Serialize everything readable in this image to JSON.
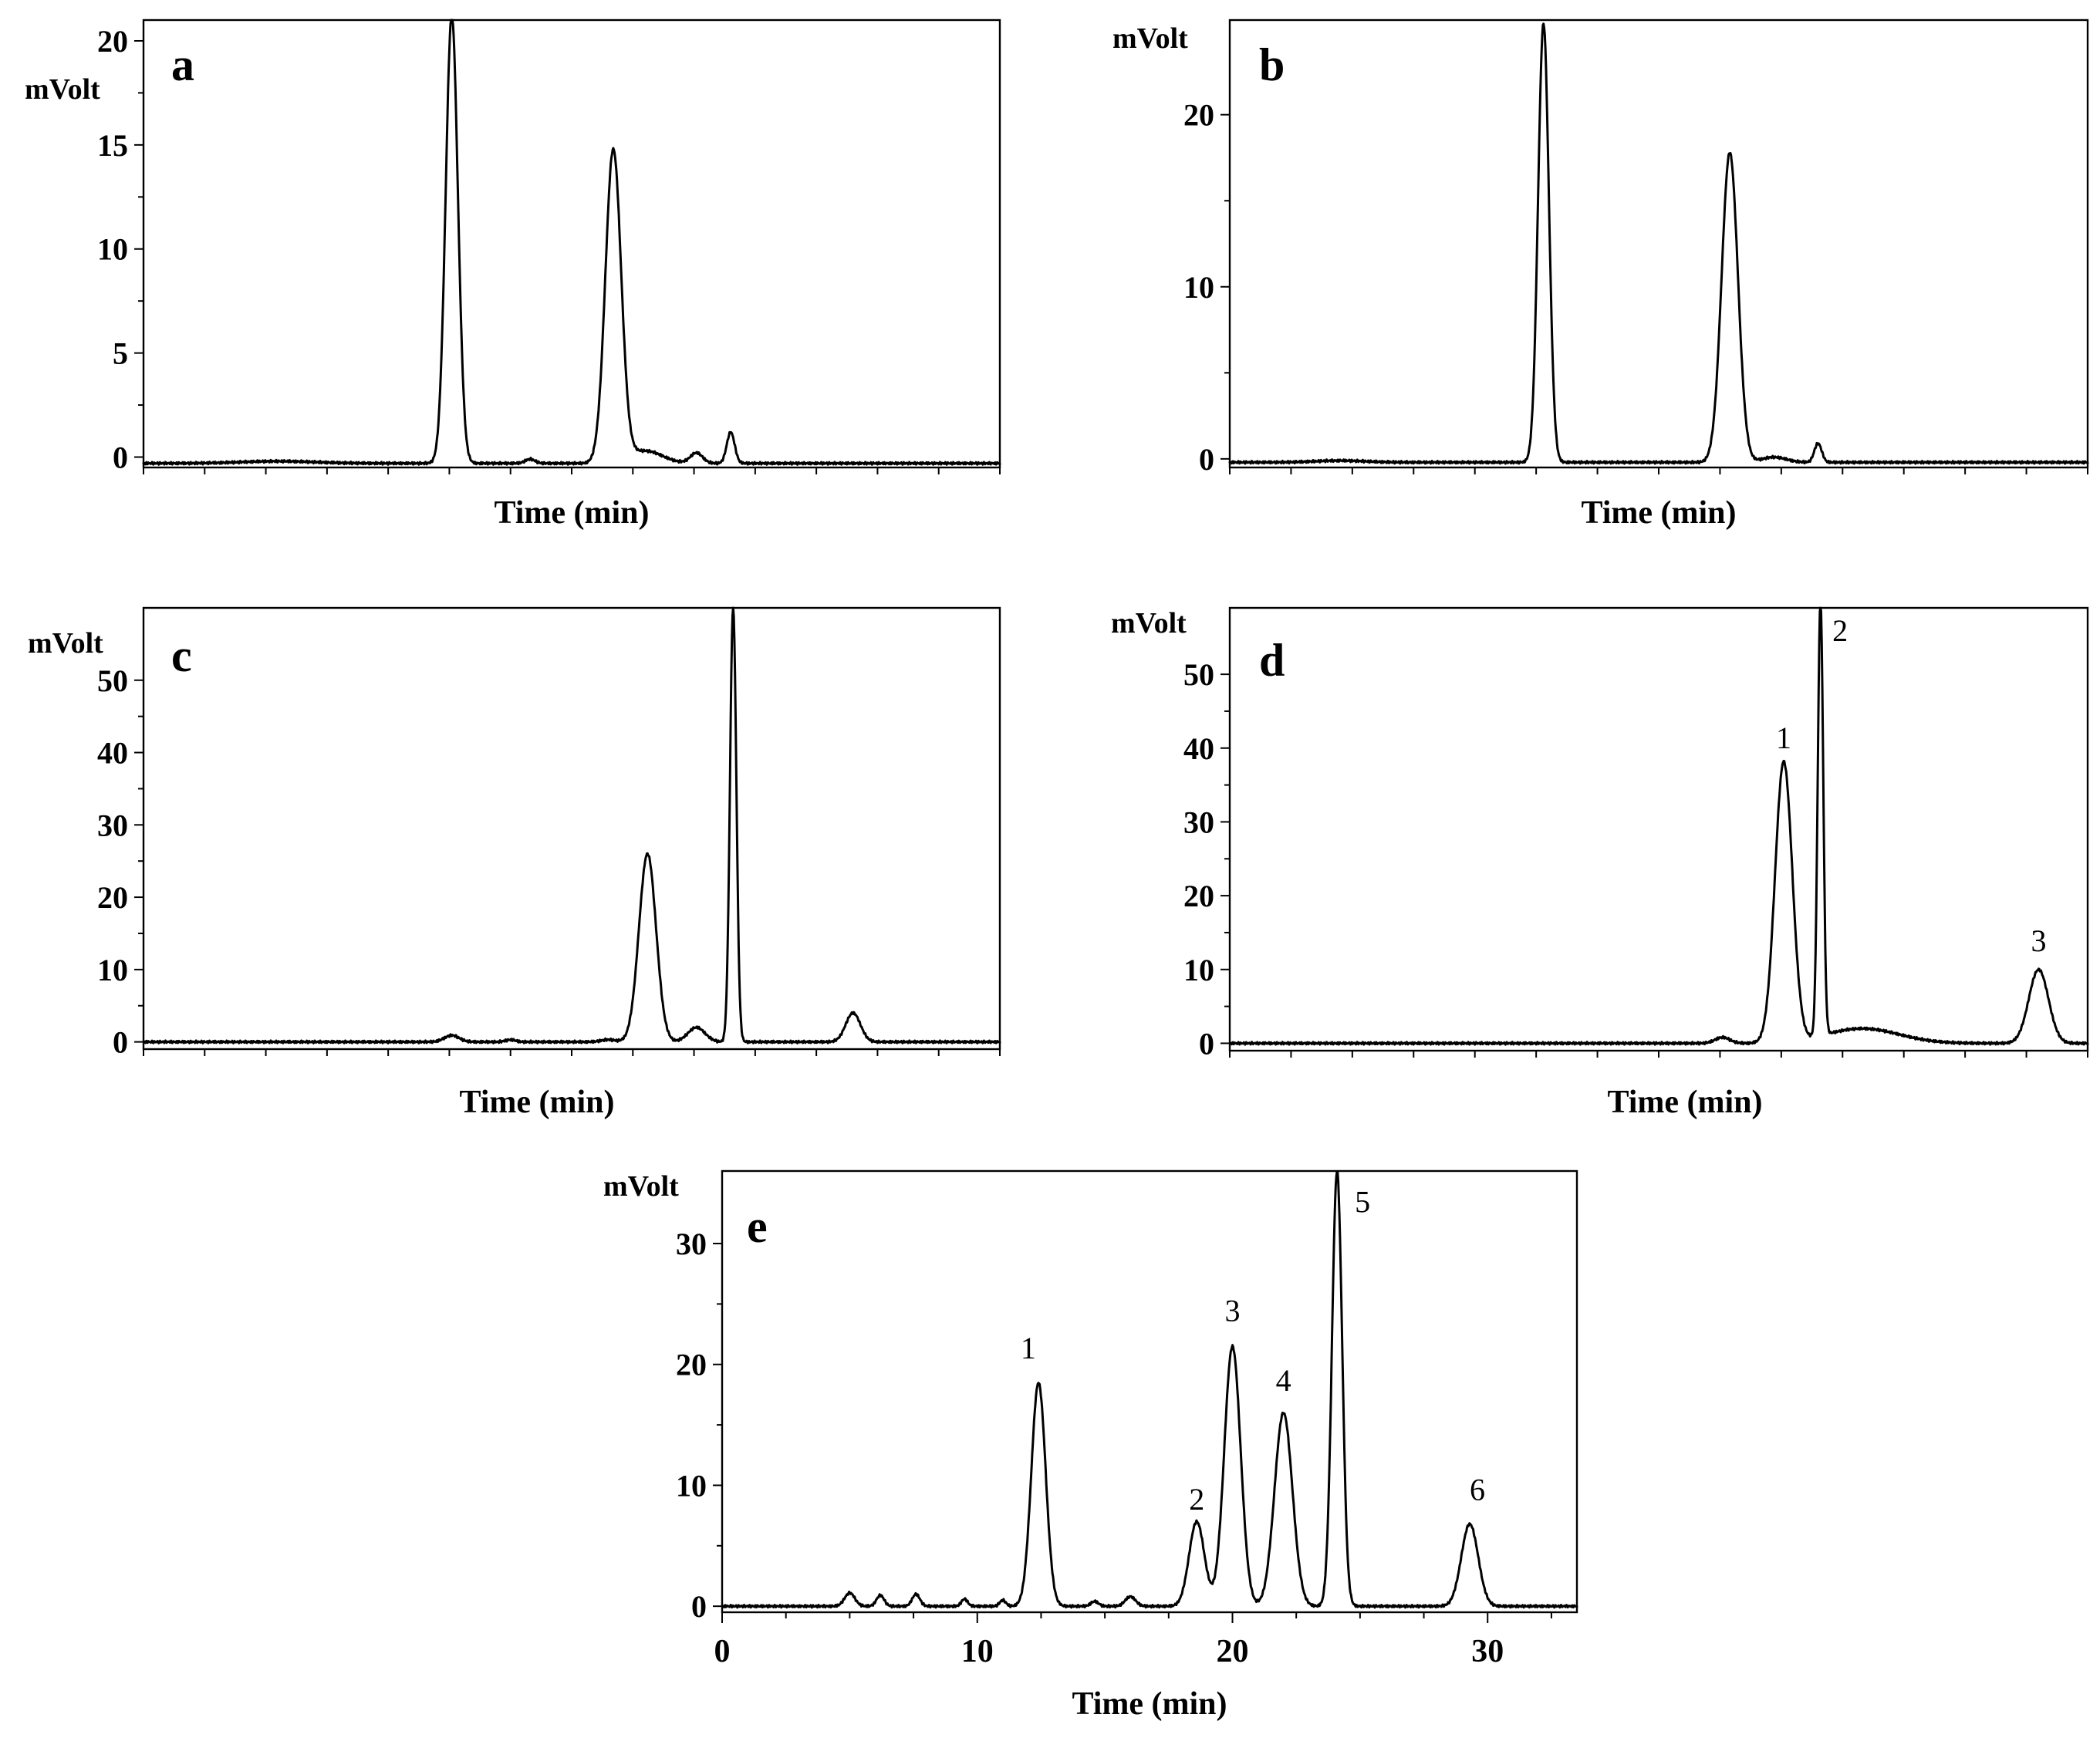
{
  "chart_data": [
    {
      "panel": "a",
      "type": "line",
      "ylabel": "mVolt",
      "xlabel": "Time (min)",
      "xlim": [
        0,
        35
      ],
      "ylim": [
        -0.5,
        21
      ],
      "yticks": [
        0,
        5,
        10,
        15,
        20
      ],
      "yticklabels": [
        "0",
        "5",
        "10",
        "15",
        "20"
      ],
      "xticks": [
        0,
        2.5,
        5,
        7.5,
        10,
        12.5,
        15,
        17.5,
        20,
        22.5,
        25,
        27.5,
        30,
        32.5,
        35
      ],
      "xticklabels": [],
      "baseline": -0.3,
      "peaks": [
        {
          "t": 12.6,
          "h": 21.5,
          "w": 0.25
        },
        {
          "t": 19.2,
          "h": 15.0,
          "w": 0.32
        },
        {
          "t": 20.5,
          "h": 0.6,
          "w": 0.7
        },
        {
          "t": 22.6,
          "h": 0.5,
          "w": 0.25
        },
        {
          "t": 24.0,
          "h": 1.5,
          "w": 0.16
        },
        {
          "t": 5.5,
          "h": 0.1,
          "w": 1.5
        },
        {
          "t": 15.8,
          "h": 0.2,
          "w": 0.2
        }
      ],
      "peak_labels": []
    },
    {
      "panel": "b",
      "type": "line",
      "ylabel": "mVolt",
      "xlabel": "Time (min)",
      "xlim": [
        0,
        35
      ],
      "ylim": [
        -0.5,
        25.5
      ],
      "yticks": [
        0,
        10,
        20
      ],
      "yticklabels": [
        "0",
        "10",
        "20"
      ],
      "xticks": [
        0,
        2.5,
        5,
        7.5,
        10,
        12.5,
        15,
        17.5,
        20,
        22.5,
        25,
        27.5,
        30,
        32.5,
        35
      ],
      "xticklabels": [],
      "baseline": -0.2,
      "peaks": [
        {
          "t": 12.8,
          "h": 25.5,
          "w": 0.22
        },
        {
          "t": 20.4,
          "h": 18.0,
          "w": 0.33
        },
        {
          "t": 22.2,
          "h": 0.3,
          "w": 0.5
        },
        {
          "t": 24.0,
          "h": 1.1,
          "w": 0.15
        },
        {
          "t": 4.5,
          "h": 0.1,
          "w": 1.0
        }
      ],
      "peak_labels": []
    },
    {
      "panel": "c",
      "type": "line",
      "ylabel": "mVolt",
      "xlabel": "Time (min)",
      "xlim": [
        0,
        35
      ],
      "ylim": [
        -1,
        60
      ],
      "yticks": [
        0,
        10,
        20,
        30,
        40,
        50
      ],
      "yticklabels": [
        "0",
        "10",
        "20",
        "30",
        "40",
        "50"
      ],
      "xticks": [
        0,
        2.5,
        5,
        7.5,
        10,
        12.5,
        15,
        17.5,
        20,
        22.5,
        25,
        27.5,
        30,
        32.5,
        35
      ],
      "xticklabels": [],
      "baseline": 0,
      "peaks": [
        {
          "t": 12.6,
          "h": 0.9,
          "w": 0.3
        },
        {
          "t": 15.0,
          "h": 0.3,
          "w": 0.2
        },
        {
          "t": 19.0,
          "h": 0.3,
          "w": 0.3
        },
        {
          "t": 20.6,
          "h": 26.0,
          "w": 0.35
        },
        {
          "t": 22.6,
          "h": 2.0,
          "w": 0.35
        },
        {
          "t": 24.1,
          "h": 60.0,
          "w": 0.13
        },
        {
          "t": 29.0,
          "h": 4.0,
          "w": 0.3
        }
      ],
      "peak_labels": []
    },
    {
      "panel": "d",
      "type": "line",
      "ylabel": "mVolt",
      "xlabel": "Time (min)",
      "xlim": [
        0,
        35
      ],
      "ylim": [
        -1,
        59
      ],
      "yticks": [
        0,
        10,
        20,
        30,
        40,
        50
      ],
      "yticklabels": [
        "0",
        "10",
        "20",
        "30",
        "40",
        "50"
      ],
      "xticks": [
        0,
        2.5,
        5,
        7.5,
        10,
        12.5,
        15,
        17.5,
        20,
        22.5,
        25,
        27.5,
        30,
        32.5,
        35
      ],
      "xticklabels": [],
      "baseline": 0,
      "peaks": [
        {
          "t": 20.1,
          "h": 0.8,
          "w": 0.3
        },
        {
          "t": 22.6,
          "h": 38.0,
          "w": 0.35
        },
        {
          "t": 24.1,
          "h": 59.0,
          "w": 0.11
        },
        {
          "t": 25.8,
          "h": 2.0,
          "w": 1.5
        },
        {
          "t": 33.0,
          "h": 10.0,
          "w": 0.4
        }
      ],
      "peak_labels": [
        {
          "label": "1",
          "t": 22.6,
          "y": 40.0
        },
        {
          "label": "2",
          "t": 24.9,
          "y": 54.5
        },
        {
          "label": "3",
          "t": 33.0,
          "y": 12.5
        }
      ]
    },
    {
      "panel": "e",
      "type": "line",
      "ylabel": "mVolt",
      "xlabel": "Time (min)",
      "xlim": [
        0,
        33.5
      ],
      "ylim": [
        -0.5,
        36
      ],
      "yticks": [
        0,
        10,
        20,
        30
      ],
      "yticklabels": [
        "0",
        "10",
        "20",
        "30"
      ],
      "xticks": [
        0,
        10,
        20,
        30
      ],
      "xticklabels": [
        "0",
        "10",
        "20",
        "30"
      ],
      "minor_xticks": [
        2.5,
        5,
        7.5,
        12.5,
        15,
        17.5,
        22.5,
        25,
        27.5,
        32.5
      ],
      "baseline": 0,
      "peaks": [
        {
          "t": 5.0,
          "h": 1.1,
          "w": 0.2
        },
        {
          "t": 6.2,
          "h": 0.9,
          "w": 0.15
        },
        {
          "t": 7.6,
          "h": 1.0,
          "w": 0.15
        },
        {
          "t": 9.5,
          "h": 0.6,
          "w": 0.12
        },
        {
          "t": 11.0,
          "h": 0.5,
          "w": 0.12
        },
        {
          "t": 12.4,
          "h": 18.5,
          "w": 0.28
        },
        {
          "t": 14.6,
          "h": 0.4,
          "w": 0.15
        },
        {
          "t": 16.0,
          "h": 0.8,
          "w": 0.2
        },
        {
          "t": 18.6,
          "h": 7.0,
          "w": 0.3
        },
        {
          "t": 20.0,
          "h": 21.5,
          "w": 0.32
        },
        {
          "t": 22.0,
          "h": 16.0,
          "w": 0.35
        },
        {
          "t": 24.1,
          "h": 36.0,
          "w": 0.2
        },
        {
          "t": 29.3,
          "h": 6.8,
          "w": 0.33
        }
      ],
      "peak_labels": [
        {
          "label": "1",
          "t": 12.0,
          "y": 20.5
        },
        {
          "label": "2",
          "t": 18.6,
          "y": 8.0
        },
        {
          "label": "3",
          "t": 20.0,
          "y": 23.6
        },
        {
          "label": "4",
          "t": 22.0,
          "y": 17.8
        },
        {
          "label": "5",
          "t": 25.1,
          "y": 32.6
        },
        {
          "label": "6",
          "t": 29.6,
          "y": 8.8
        }
      ]
    }
  ]
}
